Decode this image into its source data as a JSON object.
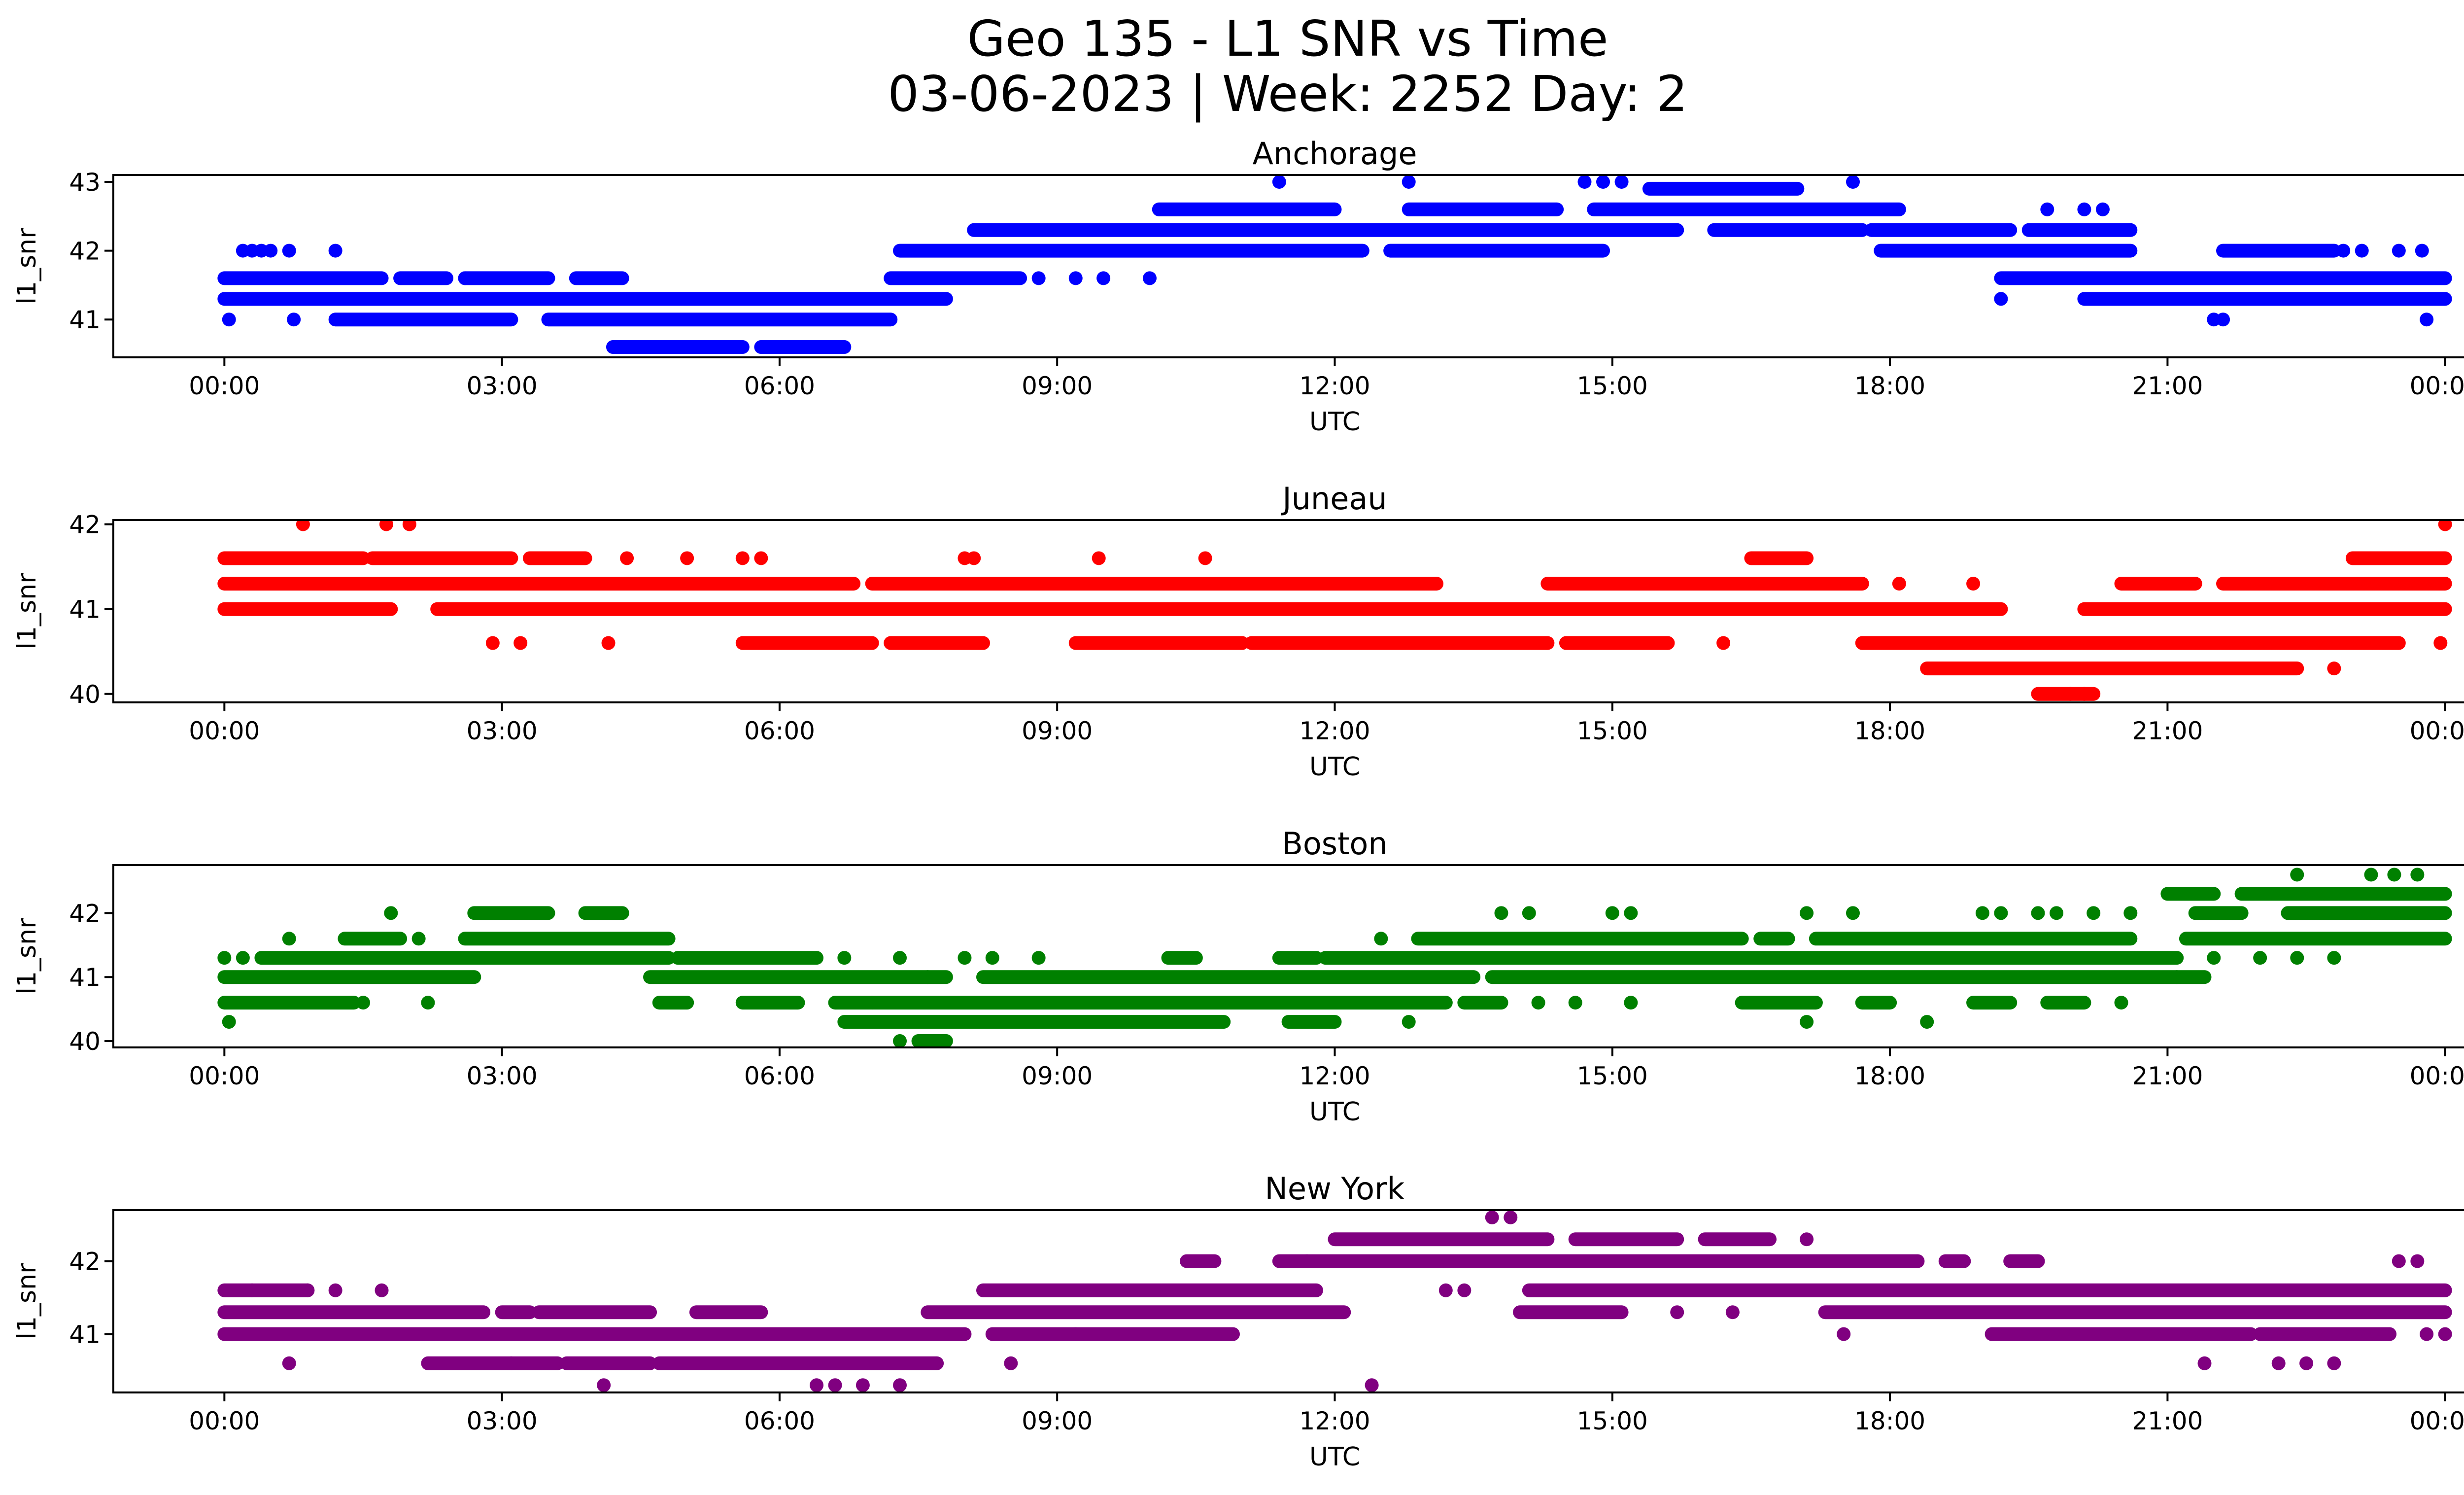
{
  "figure": {
    "title_line1": "Geo 135 - L1 SNR vs Time",
    "title_line2": "03-06-2023 | Week: 2252 Day: 2"
  },
  "chart_data": [
    {
      "type": "scatter",
      "title": "Anchorage",
      "color": "#0000ff",
      "xlabel": "UTC",
      "ylabel": "l1_snr",
      "xticks": [
        "00:00",
        "03:00",
        "06:00",
        "09:00",
        "12:00",
        "15:00",
        "18:00",
        "21:00",
        "00:00"
      ],
      "yticks": [
        41,
        42,
        43
      ],
      "xlim": [
        -1.2,
        25.2
      ],
      "ylim": [
        40.45,
        43.1
      ],
      "bands": [
        {
          "y": 41.6,
          "segments": [
            [
              0.0,
              1.7
            ],
            [
              1.9,
              2.4
            ],
            [
              2.6,
              3.5
            ],
            [
              3.8,
              4.3
            ],
            [
              7.2,
              8.6
            ]
          ]
        },
        {
          "y": 41.3,
          "segments": [
            [
              0.0,
              7.8
            ]
          ]
        },
        {
          "y": 41.0,
          "segments": [
            [
              1.2,
              3.1
            ],
            [
              3.5,
              7.2
            ]
          ]
        },
        {
          "y": 40.6,
          "segments": [
            [
              4.2,
              5.6
            ],
            [
              5.8,
              6.7
            ]
          ]
        },
        {
          "y": 42.0,
          "segments": [
            [
              7.3,
              12.3
            ],
            [
              12.6,
              14.9
            ],
            [
              17.9,
              20.6
            ]
          ]
        },
        {
          "y": 42.3,
          "segments": [
            [
              8.1,
              15.7
            ],
            [
              16.1,
              17.7
            ],
            [
              17.8,
              19.3
            ],
            [
              19.5,
              20.6
            ]
          ]
        },
        {
          "y": 42.6,
          "segments": [
            [
              10.1,
              12.0
            ],
            [
              12.8,
              14.4
            ],
            [
              14.8,
              18.1
            ]
          ]
        },
        {
          "y": 42.9,
          "segments": [
            [
              15.4,
              17.0
            ]
          ]
        },
        {
          "y": 41.6,
          "segments": [
            [
              19.2,
              24.0
            ]
          ]
        },
        {
          "y": 41.3,
          "segments": [
            [
              20.1,
              24.0
            ]
          ]
        },
        {
          "y": 42.0,
          "segments": [
            [
              21.6,
              22.8
            ]
          ]
        }
      ],
      "points": [
        [
          0.05,
          41.0
        ],
        [
          0.2,
          42.0
        ],
        [
          0.3,
          42.0
        ],
        [
          0.4,
          42.0
        ],
        [
          0.5,
          42.0
        ],
        [
          0.7,
          42.0
        ],
        [
          0.75,
          41.0
        ],
        [
          1.2,
          42.0
        ],
        [
          2.6,
          41.6
        ],
        [
          4.6,
          40.6
        ],
        [
          8.8,
          41.6
        ],
        [
          9.2,
          41.6
        ],
        [
          9.5,
          41.6
        ],
        [
          10.0,
          41.6
        ],
        [
          11.4,
          43.0
        ],
        [
          12.8,
          43.0
        ],
        [
          14.7,
          43.0
        ],
        [
          14.9,
          43.0
        ],
        [
          15.1,
          43.0
        ],
        [
          17.6,
          43.0
        ],
        [
          19.2,
          41.3
        ],
        [
          19.7,
          42.6
        ],
        [
          20.1,
          42.6
        ],
        [
          20.3,
          42.6
        ],
        [
          21.5,
          41.0
        ],
        [
          21.6,
          41.0
        ],
        [
          22.9,
          42.0
        ],
        [
          23.1,
          42.0
        ],
        [
          23.5,
          42.0
        ],
        [
          23.75,
          42.0
        ],
        [
          23.8,
          41.0
        ]
      ]
    },
    {
      "type": "scatter",
      "title": "Juneau",
      "color": "#ff0000",
      "xlabel": "UTC",
      "ylabel": "l1_snr",
      "xticks": [
        "00:00",
        "03:00",
        "06:00",
        "09:00",
        "12:00",
        "15:00",
        "18:00",
        "21:00",
        "00:00"
      ],
      "yticks": [
        40,
        41,
        42
      ],
      "xlim": [
        -1.2,
        25.2
      ],
      "ylim": [
        39.9,
        42.05
      ],
      "bands": [
        {
          "y": 41.6,
          "segments": [
            [
              0.0,
              1.5
            ],
            [
              1.6,
              3.1
            ],
            [
              3.3,
              3.9
            ],
            [
              16.5,
              17.1
            ],
            [
              23.0,
              24.0
            ]
          ]
        },
        {
          "y": 41.3,
          "segments": [
            [
              0.0,
              6.8
            ],
            [
              7.0,
              13.1
            ],
            [
              14.3,
              17.7
            ],
            [
              20.5,
              21.3
            ],
            [
              21.6,
              24.0
            ]
          ]
        },
        {
          "y": 41.0,
          "segments": [
            [
              0.0,
              1.8
            ],
            [
              2.3,
              19.2
            ],
            [
              20.1,
              24.0
            ]
          ]
        },
        {
          "y": 40.6,
          "segments": [
            [
              5.6,
              7.0
            ],
            [
              7.2,
              8.2
            ],
            [
              9.2,
              11.0
            ],
            [
              11.1,
              14.3
            ],
            [
              14.5,
              15.6
            ],
            [
              17.7,
              23.5
            ]
          ]
        },
        {
          "y": 40.3,
          "segments": [
            [
              18.4,
              22.4
            ]
          ]
        },
        {
          "y": 40.0,
          "segments": [
            [
              19.6,
              20.2
            ]
          ]
        }
      ],
      "points": [
        [
          0.85,
          42.0
        ],
        [
          1.75,
          42.0
        ],
        [
          2.0,
          42.0
        ],
        [
          4.35,
          41.6
        ],
        [
          5.0,
          41.6
        ],
        [
          5.6,
          41.6
        ],
        [
          5.8,
          41.6
        ],
        [
          8.0,
          41.6
        ],
        [
          8.1,
          41.6
        ],
        [
          9.45,
          41.6
        ],
        [
          10.6,
          41.6
        ],
        [
          2.9,
          40.6
        ],
        [
          3.2,
          40.6
        ],
        [
          4.15,
          40.6
        ],
        [
          16.2,
          40.6
        ],
        [
          18.1,
          41.3
        ],
        [
          18.9,
          41.3
        ],
        [
          22.8,
          40.3
        ],
        [
          19.95,
          40.0
        ],
        [
          20.1,
          40.0
        ],
        [
          23.25,
          41.6
        ],
        [
          23.5,
          41.6
        ],
        [
          24.0,
          42.0
        ],
        [
          23.95,
          40.6
        ]
      ]
    },
    {
      "type": "scatter",
      "title": "Boston",
      "color": "#008000",
      "xlabel": "UTC",
      "ylabel": "l1_snr",
      "xticks": [
        "00:00",
        "03:00",
        "06:00",
        "09:00",
        "12:00",
        "15:00",
        "18:00",
        "21:00",
        "00:00"
      ],
      "yticks": [
        40,
        41,
        42
      ],
      "xlim": [
        -1.2,
        25.2
      ],
      "ylim": [
        39.9,
        42.75
      ],
      "bands": [
        {
          "y": 41.3,
          "segments": [
            [
              0.4,
              4.8
            ],
            [
              4.9,
              6.4
            ],
            [
              10.2,
              10.5
            ],
            [
              11.4,
              11.8
            ],
            [
              11.9,
              21.1
            ]
          ]
        },
        {
          "y": 41.0,
          "segments": [
            [
              0.0,
              2.7
            ],
            [
              4.6,
              7.8
            ],
            [
              8.2,
              13.5
            ],
            [
              13.7,
              21.4
            ]
          ]
        },
        {
          "y": 40.6,
          "segments": [
            [
              0.0,
              1.4
            ],
            [
              4.7,
              5.0
            ],
            [
              5.6,
              6.2
            ],
            [
              6.6,
              13.2
            ],
            [
              13.4,
              13.8
            ],
            [
              16.4,
              17.2
            ],
            [
              17.7,
              18.0
            ],
            [
              18.9,
              19.3
            ],
            [
              19.7,
              20.1
            ]
          ]
        },
        {
          "y": 40.3,
          "segments": [
            [
              6.7,
              10.8
            ],
            [
              11.5,
              12.0
            ]
          ]
        },
        {
          "y": 41.6,
          "segments": [
            [
              1.3,
              1.9
            ],
            [
              2.6,
              4.8
            ],
            [
              12.9,
              16.4
            ],
            [
              16.6,
              16.9
            ],
            [
              17.2,
              20.6
            ],
            [
              21.2,
              24.0
            ]
          ]
        },
        {
          "y": 42.0,
          "segments": [
            [
              2.7,
              3.5
            ],
            [
              3.9,
              4.3
            ],
            [
              21.3,
              21.8
            ],
            [
              22.3,
              24.0
            ]
          ]
        },
        {
          "y": 42.3,
          "segments": [
            [
              21.0,
              21.5
            ],
            [
              21.8,
              24.0
            ]
          ]
        },
        {
          "y": 40.0,
          "segments": [
            [
              7.5,
              7.8
            ]
          ]
        }
      ],
      "points": [
        [
          0.0,
          41.3
        ],
        [
          0.05,
          40.3
        ],
        [
          0.2,
          41.3
        ],
        [
          0.7,
          41.6
        ],
        [
          1.8,
          42.0
        ],
        [
          1.5,
          40.6
        ],
        [
          2.2,
          40.6
        ],
        [
          2.1,
          41.6
        ],
        [
          6.7,
          41.3
        ],
        [
          7.0,
          40.6
        ],
        [
          7.3,
          41.3
        ],
        [
          7.3,
          40.0
        ],
        [
          7.6,
          41.0
        ],
        [
          8.0,
          41.3
        ],
        [
          8.3,
          41.3
        ],
        [
          8.8,
          41.3
        ],
        [
          12.5,
          41.6
        ],
        [
          12.8,
          40.3
        ],
        [
          13.8,
          42.0
        ],
        [
          14.1,
          42.0
        ],
        [
          14.2,
          40.6
        ],
        [
          14.6,
          40.6
        ],
        [
          15.0,
          42.0
        ],
        [
          15.2,
          42.0
        ],
        [
          15.2,
          40.6
        ],
        [
          17.1,
          40.3
        ],
        [
          17.1,
          42.0
        ],
        [
          17.6,
          42.0
        ],
        [
          18.4,
          40.3
        ],
        [
          19.0,
          42.0
        ],
        [
          19.2,
          42.0
        ],
        [
          19.6,
          42.0
        ],
        [
          19.8,
          42.0
        ],
        [
          20.2,
          42.0
        ],
        [
          20.5,
          40.6
        ],
        [
          20.6,
          42.0
        ],
        [
          21.1,
          41.0
        ],
        [
          21.5,
          41.3
        ],
        [
          22.0,
          41.3
        ],
        [
          22.4,
          41.3
        ],
        [
          22.4,
          42.6
        ],
        [
          22.8,
          41.3
        ],
        [
          23.2,
          42.6
        ],
        [
          23.45,
          42.6
        ],
        [
          23.7,
          42.6
        ]
      ]
    },
    {
      "type": "scatter",
      "title": "New York",
      "color": "#800080",
      "xlabel": "UTC",
      "ylabel": "l1_snr",
      "xticks": [
        "00:00",
        "03:00",
        "06:00",
        "09:00",
        "12:00",
        "15:00",
        "18:00",
        "21:00",
        "00:00"
      ],
      "yticks": [
        41,
        42
      ],
      "xlim": [
        -1.2,
        25.2
      ],
      "ylim": [
        40.2,
        42.7
      ],
      "bands": [
        {
          "y": 41.6,
          "segments": [
            [
              0.0,
              0.9
            ],
            [
              8.2,
              11.8
            ],
            [
              14.1,
              24.0
            ]
          ]
        },
        {
          "y": 41.3,
          "segments": [
            [
              0.0,
              2.8
            ],
            [
              3.0,
              3.3
            ],
            [
              3.4,
              4.6
            ],
            [
              5.1,
              5.8
            ],
            [
              7.6,
              12.1
            ],
            [
              14.0,
              15.1
            ],
            [
              17.3,
              24.0
            ]
          ]
        },
        {
          "y": 41.0,
          "segments": [
            [
              0.0,
              8.0
            ],
            [
              8.3,
              10.9
            ],
            [
              19.1,
              21.9
            ],
            [
              22.0,
              23.4
            ]
          ]
        },
        {
          "y": 40.6,
          "segments": [
            [
              2.2,
              3.6
            ],
            [
              3.7,
              4.6
            ],
            [
              4.7,
              7.7
            ]
          ]
        },
        {
          "y": 42.0,
          "segments": [
            [
              10.4,
              10.7
            ],
            [
              11.4,
              11.7
            ],
            [
              11.7,
              18.3
            ],
            [
              18.6,
              18.8
            ],
            [
              19.3,
              19.6
            ]
          ]
        },
        {
          "y": 42.3,
          "segments": [
            [
              12.0,
              14.3
            ],
            [
              14.6,
              15.7
            ],
            [
              16.0,
              16.7
            ]
          ]
        }
      ],
      "points": [
        [
          0.3,
          41.6
        ],
        [
          0.9,
          41.6
        ],
        [
          1.2,
          41.6
        ],
        [
          1.7,
          41.6
        ],
        [
          0.7,
          40.6
        ],
        [
          3.1,
          40.6
        ],
        [
          4.1,
          40.3
        ],
        [
          6.4,
          40.3
        ],
        [
          6.6,
          40.3
        ],
        [
          6.9,
          40.3
        ],
        [
          7.3,
          40.3
        ],
        [
          9.2,
          41.0
        ],
        [
          12.4,
          40.3
        ],
        [
          8.5,
          40.6
        ],
        [
          13.2,
          41.6
        ],
        [
          13.4,
          41.6
        ],
        [
          13.7,
          42.6
        ],
        [
          13.9,
          42.6
        ],
        [
          15.7,
          41.3
        ],
        [
          16.3,
          41.3
        ],
        [
          17.1,
          42.3
        ],
        [
          17.5,
          41.0
        ],
        [
          21.4,
          40.6
        ],
        [
          22.2,
          40.6
        ],
        [
          22.5,
          40.6
        ],
        [
          22.8,
          40.6
        ],
        [
          23.5,
          42.0
        ],
        [
          23.7,
          42.0
        ],
        [
          23.8,
          41.0
        ],
        [
          24.0,
          41.0
        ]
      ]
    }
  ]
}
